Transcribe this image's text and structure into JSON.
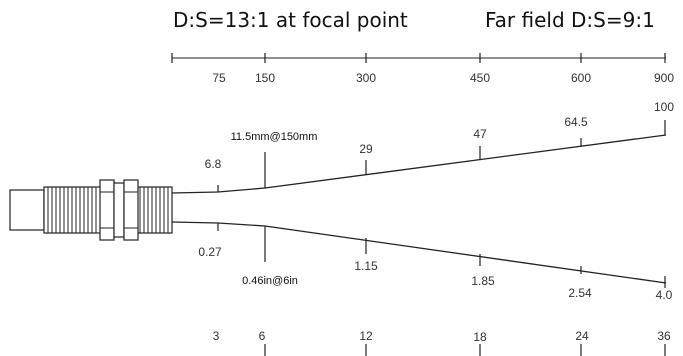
{
  "headings": {
    "focal": "D:S=13:1 at focal point",
    "far_field": "Far field D:S=9:1"
  },
  "top_axis": {
    "labels": [
      "75",
      "150",
      "300",
      "450",
      "600",
      "900"
    ]
  },
  "bottom_axis": {
    "labels": [
      "3",
      "6",
      "12",
      "18",
      "24",
      "36"
    ]
  },
  "spot_top": {
    "labels": [
      "6.8",
      "29",
      "47",
      "64.5",
      "100"
    ],
    "focal_label": "11.5mm@150mm"
  },
  "spot_bottom": {
    "labels": [
      "0.27",
      "1.15",
      "1.85",
      "2.54",
      "4.0"
    ],
    "focal_label": "0.46in@6in"
  }
}
